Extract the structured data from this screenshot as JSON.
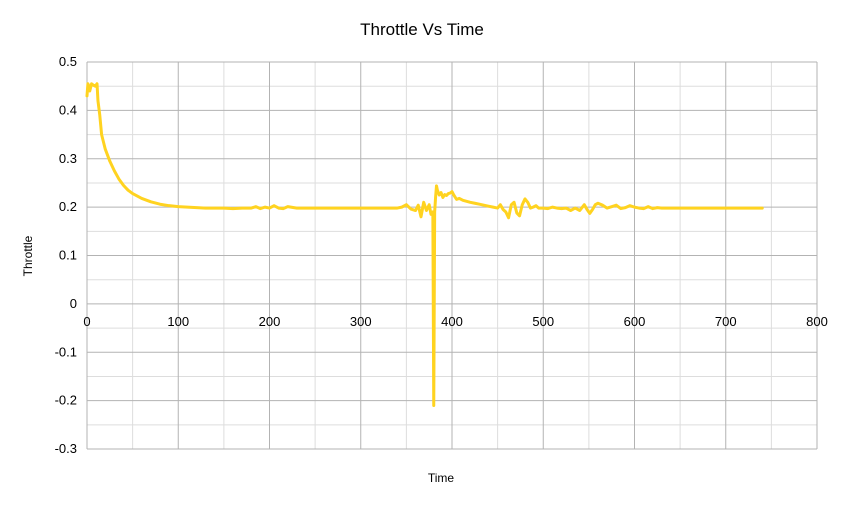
{
  "chart_data": {
    "type": "line",
    "title": "Throttle Vs Time",
    "xlabel": "Time",
    "ylabel": "Throttle",
    "xlim": [
      0,
      800
    ],
    "ylim": [
      -0.3,
      0.5
    ],
    "x_ticks": [
      0,
      100,
      200,
      300,
      400,
      500,
      600,
      700,
      800
    ],
    "y_ticks": [
      0.5,
      0.4,
      0.3,
      0.2,
      0.1,
      0,
      -0.1,
      -0.2,
      -0.3
    ],
    "x_tick_labels": [
      "0",
      "100",
      "200",
      "300",
      "400",
      "500",
      "600",
      "700",
      "800"
    ],
    "y_tick_labels": [
      "0.5",
      "0.4",
      "0.3",
      "0.2",
      "0.1",
      "0",
      "-0.1",
      "-0.2",
      "-0.3"
    ],
    "grid": true,
    "legend": "none",
    "series_color": "#ffd320",
    "series": [
      {
        "x": [
          0,
          1,
          2,
          3,
          5,
          7,
          9,
          11,
          12,
          14,
          16,
          18,
          20,
          25,
          30,
          35,
          40,
          45,
          50,
          60,
          70,
          80,
          90,
          100,
          110,
          120,
          130,
          140,
          150,
          160,
          170,
          180,
          185,
          190,
          195,
          200,
          205,
          210,
          215,
          220,
          230,
          240,
          250,
          260,
          270,
          280,
          290,
          300,
          310,
          320,
          330,
          340,
          345,
          350,
          355,
          360,
          363,
          366,
          369,
          372,
          375,
          377,
          379,
          380,
          381,
          382,
          383,
          384,
          386,
          388,
          390,
          392,
          394,
          396,
          398,
          400,
          402,
          405,
          408,
          412,
          416,
          420,
          425,
          430,
          435,
          440,
          445,
          450,
          453,
          456,
          459,
          462,
          465,
          468,
          471,
          474,
          477,
          480,
          483,
          486,
          489,
          492,
          495,
          500,
          505,
          510,
          515,
          520,
          525,
          530,
          535,
          540,
          545,
          548,
          551,
          554,
          557,
          560,
          565,
          570,
          575,
          580,
          585,
          590,
          595,
          600,
          605,
          610,
          615,
          620,
          625,
          630,
          640,
          650,
          660,
          670,
          680,
          690,
          700,
          710,
          720,
          730,
          740
        ],
        "values": [
          0.43,
          0.455,
          0.45,
          0.44,
          0.455,
          0.452,
          0.45,
          0.455,
          0.42,
          0.39,
          0.35,
          0.335,
          0.32,
          0.295,
          0.275,
          0.258,
          0.245,
          0.235,
          0.228,
          0.218,
          0.211,
          0.206,
          0.203,
          0.201,
          0.2,
          0.199,
          0.198,
          0.198,
          0.198,
          0.197,
          0.198,
          0.198,
          0.201,
          0.197,
          0.2,
          0.198,
          0.203,
          0.198,
          0.197,
          0.201,
          0.198,
          0.198,
          0.198,
          0.198,
          0.198,
          0.198,
          0.198,
          0.198,
          0.198,
          0.198,
          0.198,
          0.198,
          0.2,
          0.205,
          0.196,
          0.193,
          0.204,
          0.18,
          0.21,
          0.193,
          0.205,
          0.185,
          0.19,
          -0.21,
          0.19,
          0.22,
          0.244,
          0.235,
          0.225,
          0.23,
          0.22,
          0.226,
          0.224,
          0.228,
          0.229,
          0.232,
          0.225,
          0.216,
          0.218,
          0.214,
          0.212,
          0.21,
          0.208,
          0.206,
          0.204,
          0.202,
          0.2,
          0.198,
          0.205,
          0.195,
          0.19,
          0.178,
          0.205,
          0.21,
          0.188,
          0.182,
          0.205,
          0.217,
          0.21,
          0.198,
          0.2,
          0.203,
          0.198,
          0.198,
          0.197,
          0.2,
          0.198,
          0.197,
          0.198,
          0.193,
          0.198,
          0.193,
          0.205,
          0.195,
          0.187,
          0.195,
          0.205,
          0.208,
          0.204,
          0.198,
          0.201,
          0.204,
          0.197,
          0.199,
          0.203,
          0.2,
          0.198,
          0.197,
          0.201,
          0.197,
          0.199,
          0.198,
          0.198,
          0.198,
          0.198,
          0.198,
          0.198,
          0.198,
          0.198,
          0.198,
          0.198,
          0.198,
          0.198
        ]
      }
    ]
  }
}
